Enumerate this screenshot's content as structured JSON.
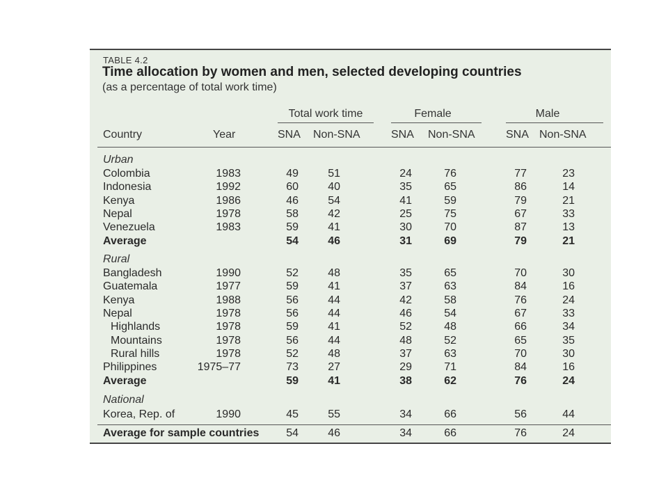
{
  "table": {
    "label": "TABLE 4.2",
    "title": "Time allocation by women and men, selected developing countries",
    "subtitle": "(as a percentage of total work time)",
    "group_headers": [
      "Total work time",
      "Female",
      "Male"
    ],
    "col_country": "Country",
    "col_year": "Year",
    "col_sna": "SNA",
    "col_nonsna": "Non-SNA",
    "sections": [
      {
        "name": "Urban",
        "rows": [
          {
            "country": "Colombia",
            "year": "1983",
            "values": [
              "49",
              "51",
              "24",
              "76",
              "77",
              "23"
            ]
          },
          {
            "country": "Indonesia",
            "year": "1992",
            "values": [
              "60",
              "40",
              "35",
              "65",
              "86",
              "14"
            ]
          },
          {
            "country": "Kenya",
            "year": "1986",
            "values": [
              "46",
              "54",
              "41",
              "59",
              "79",
              "21"
            ]
          },
          {
            "country": "Nepal",
            "year": "1978",
            "values": [
              "58",
              "42",
              "25",
              "75",
              "67",
              "33"
            ]
          },
          {
            "country": "Venezuela",
            "year": "1983",
            "values": [
              "59",
              "41",
              "30",
              "70",
              "87",
              "13"
            ]
          },
          {
            "country": "Average",
            "year": "",
            "values": [
              "54",
              "46",
              "31",
              "69",
              "79",
              "21"
            ],
            "bold": true
          }
        ]
      },
      {
        "name": "Rural",
        "rows": [
          {
            "country": "Bangladesh",
            "year": "1990",
            "values": [
              "52",
              "48",
              "35",
              "65",
              "70",
              "30"
            ]
          },
          {
            "country": "Guatemala",
            "year": "1977",
            "values": [
              "59",
              "41",
              "37",
              "63",
              "84",
              "16"
            ]
          },
          {
            "country": "Kenya",
            "year": "1988",
            "values": [
              "56",
              "44",
              "42",
              "58",
              "76",
              "24"
            ]
          },
          {
            "country": "Nepal",
            "year": "1978",
            "values": [
              "56",
              "44",
              "46",
              "54",
              "67",
              "33"
            ]
          },
          {
            "country": "Highlands",
            "year": "1978",
            "values": [
              "59",
              "41",
              "52",
              "48",
              "66",
              "34"
            ],
            "indent": true
          },
          {
            "country": "Mountains",
            "year": "1978",
            "values": [
              "56",
              "44",
              "48",
              "52",
              "65",
              "35"
            ],
            "indent": true
          },
          {
            "country": "Rural hills",
            "year": "1978",
            "values": [
              "52",
              "48",
              "37",
              "63",
              "70",
              "30"
            ],
            "indent": true
          },
          {
            "country": "Philippines",
            "year": "1975–77",
            "values": [
              "73",
              "27",
              "29",
              "71",
              "84",
              "16"
            ]
          },
          {
            "country": "Average",
            "year": "",
            "values": [
              "59",
              "41",
              "38",
              "62",
              "76",
              "24"
            ],
            "bold": true
          }
        ]
      },
      {
        "name": "National",
        "rows": [
          {
            "country": "Korea, Rep. of",
            "year": "1990",
            "values": [
              "45",
              "55",
              "34",
              "66",
              "56",
              "44"
            ]
          }
        ]
      }
    ],
    "summary": {
      "country": "Average for sample countries",
      "values": [
        "54",
        "46",
        "34",
        "66",
        "76",
        "24"
      ]
    }
  }
}
